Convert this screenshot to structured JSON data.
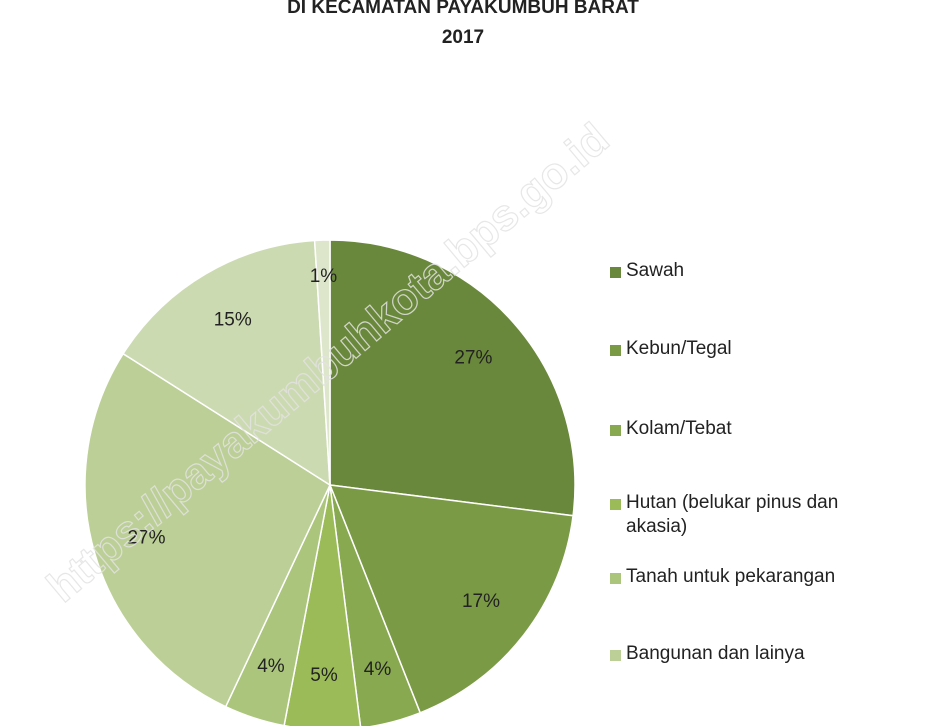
{
  "chart_data": {
    "type": "pie",
    "title": [
      "DI KECAMATAN PAYAKUMBUH BARAT",
      "2017"
    ],
    "watermark": "https://payakumbuhkota.bps.go.id",
    "categories": [
      "Sawah",
      "Kebun/Tegal",
      "Kolam/Tebat",
      "Hutan (belukar pinus dan akasia)",
      "Tanah untuk pekarangan",
      "Bangunan dan lainya",
      null,
      null
    ],
    "values": [
      27,
      17,
      4,
      5,
      4,
      27,
      15,
      1
    ],
    "value_labels": [
      "27%",
      "17%",
      "4%",
      "5%",
      "4%",
      "27%",
      "15%",
      "1%"
    ],
    "colors": [
      "#6a883b",
      "#7b9a45",
      "#88a94f",
      "#9bbb59",
      "#abc57c",
      "#bccf96",
      "#ccdab1",
      "#dde6cb"
    ],
    "legend": "right"
  }
}
